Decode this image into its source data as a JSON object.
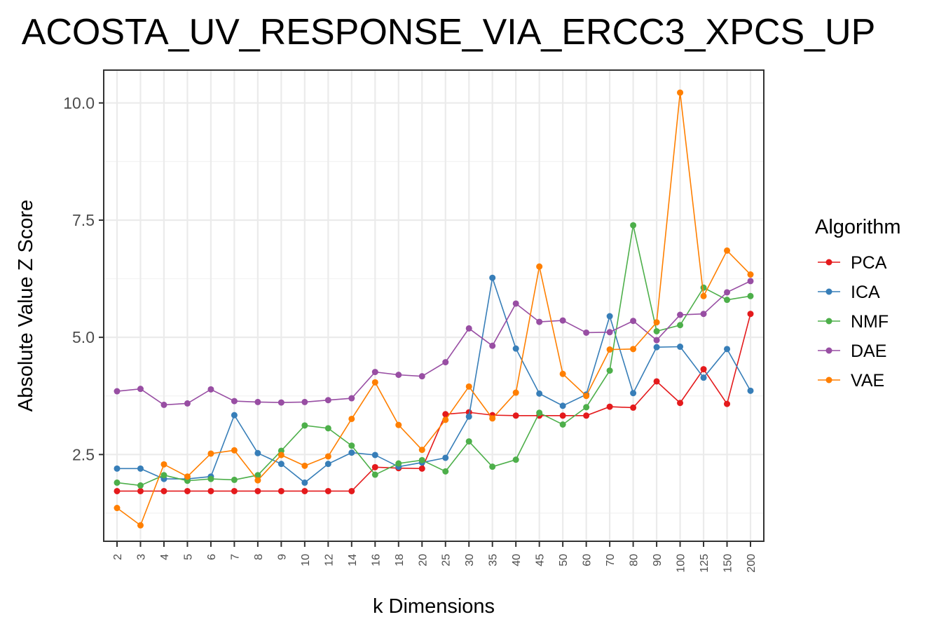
{
  "chart_data": {
    "type": "line",
    "title": "ACOSTA_UV_RESPONSE_VIA_ERCC3_XPCS_UP",
    "xlabel": "k Dimensions",
    "ylabel": "Absolute Value Z Score",
    "categories": [
      "2",
      "3",
      "4",
      "5",
      "6",
      "7",
      "8",
      "9",
      "10",
      "12",
      "14",
      "16",
      "18",
      "20",
      "25",
      "30",
      "35",
      "40",
      "45",
      "50",
      "60",
      "70",
      "80",
      "90",
      "100",
      "125",
      "150",
      "200"
    ],
    "ylim": [
      0.65,
      10.7
    ],
    "yticks": [
      2.5,
      5.0,
      7.5,
      10.0
    ],
    "ytick_labels": [
      "2.5",
      "5.0",
      "7.5",
      "10.0"
    ],
    "grid": true,
    "legend": {
      "title": "Algorithm",
      "position": "right"
    },
    "series": [
      {
        "name": "PCA",
        "color": "#e41a1c",
        "values": [
          1.72,
          1.72,
          1.72,
          1.72,
          1.72,
          1.72,
          1.72,
          1.72,
          1.72,
          1.72,
          1.72,
          2.23,
          2.21,
          2.2,
          3.36,
          3.4,
          3.34,
          3.33,
          3.33,
          3.33,
          3.33,
          3.52,
          3.5,
          4.06,
          3.6,
          4.32,
          3.58,
          5.5
        ]
      },
      {
        "name": "ICA",
        "color": "#377eb8",
        "values": [
          2.2,
          2.2,
          1.98,
          1.98,
          2.03,
          3.34,
          2.53,
          2.3,
          1.9,
          2.3,
          2.54,
          2.49,
          2.24,
          2.33,
          2.43,
          3.31,
          6.27,
          4.76,
          3.8,
          3.54,
          3.78,
          5.45,
          3.81,
          4.79,
          4.8,
          4.14,
          4.75,
          3.86
        ]
      },
      {
        "name": "NMF",
        "color": "#4daf4a",
        "values": [
          1.9,
          1.84,
          2.06,
          1.94,
          1.98,
          1.96,
          2.06,
          2.58,
          3.12,
          3.06,
          2.69,
          2.07,
          2.31,
          2.38,
          2.14,
          2.78,
          2.24,
          2.39,
          3.39,
          3.14,
          3.51,
          4.29,
          7.39,
          5.13,
          5.26,
          6.06,
          5.8,
          5.88
        ]
      },
      {
        "name": "DAE",
        "color": "#984ea3",
        "values": [
          3.85,
          3.9,
          3.56,
          3.59,
          3.89,
          3.64,
          3.62,
          3.61,
          3.62,
          3.66,
          3.7,
          4.26,
          4.2,
          4.17,
          4.47,
          5.19,
          4.82,
          5.72,
          5.33,
          5.36,
          5.1,
          5.11,
          5.35,
          4.94,
          5.48,
          5.5,
          5.96,
          6.2
        ]
      },
      {
        "name": "VAE",
        "color": "#ff7f00",
        "values": [
          1.36,
          0.99,
          2.29,
          2.03,
          2.52,
          2.59,
          1.95,
          2.49,
          2.26,
          2.46,
          3.26,
          4.04,
          3.13,
          2.6,
          3.24,
          3.95,
          3.27,
          3.82,
          6.51,
          4.22,
          3.75,
          4.74,
          4.75,
          5.32,
          10.22,
          5.88,
          6.85,
          6.34
        ]
      }
    ]
  }
}
